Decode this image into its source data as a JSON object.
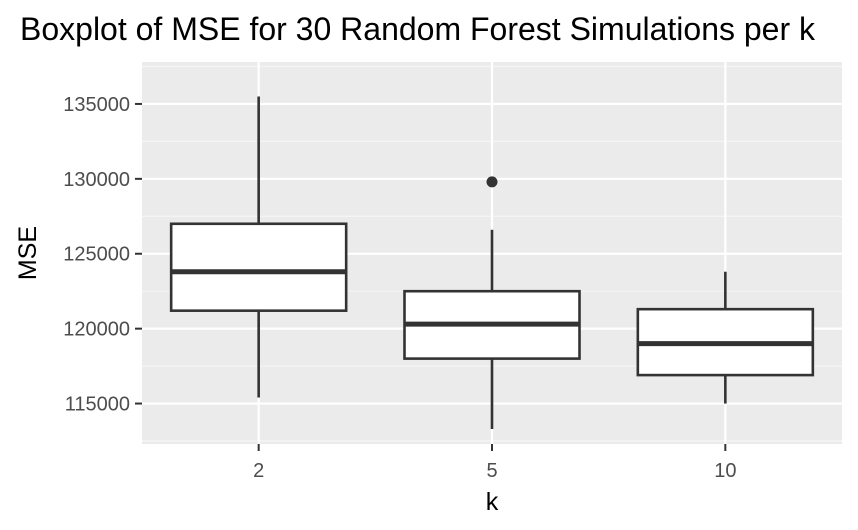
{
  "chart_data": {
    "type": "boxplot",
    "title": "Boxplot of MSE for 30 Random Forest Simulations per k",
    "xlabel": "k",
    "ylabel": "MSE",
    "categories": [
      "2",
      "5",
      "10"
    ],
    "ylim": [
      112300,
      137800
    ],
    "y_ticks": [
      115000,
      120000,
      125000,
      130000,
      135000
    ],
    "y_tick_labels": [
      "115000",
      "120000",
      "125000",
      "130000",
      "135000"
    ],
    "grid": true,
    "boxes": [
      {
        "category": "2",
        "whisker_low": 115400,
        "q1": 121200,
        "median": 123800,
        "q3": 127000,
        "whisker_high": 135500,
        "outliers": []
      },
      {
        "category": "5",
        "whisker_low": 113300,
        "q1": 118000,
        "median": 120300,
        "q3": 122500,
        "whisker_high": 126600,
        "outliers": [
          129800
        ]
      },
      {
        "category": "10",
        "whisker_low": 115000,
        "q1": 116900,
        "median": 119000,
        "q3": 121300,
        "whisker_high": 123800,
        "outliers": []
      }
    ],
    "colors": {
      "panel_background": "#ebebeb",
      "grid_major": "#ffffff",
      "grid_minor": "#f5f5f5",
      "box_fill": "#ffffff",
      "box_line": "#333333",
      "outlier": "#333333"
    }
  }
}
